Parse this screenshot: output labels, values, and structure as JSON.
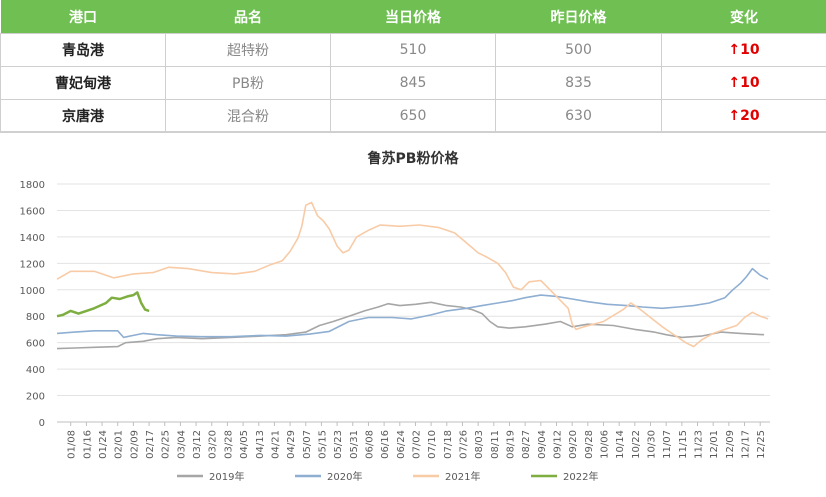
{
  "table": {
    "headers": [
      "港口",
      "品名",
      "当日价格",
      "昨日价格",
      "变化"
    ],
    "rows": [
      {
        "port": "青岛港",
        "product": "超特粉",
        "today": "510",
        "yesterday": "500",
        "change": "↑10"
      },
      {
        "port": "曹妃甸港",
        "product": "PB粉",
        "today": "845",
        "yesterday": "835",
        "change": "↑10"
      },
      {
        "port": "京唐港",
        "product": "混合粉",
        "today": "650",
        "yesterday": "630",
        "change": "↑20"
      }
    ]
  },
  "chart_data": {
    "type": "line",
    "title": "鲁苏PB粉价格",
    "ylim": [
      0,
      1800
    ],
    "yticks": [
      0,
      200,
      400,
      600,
      800,
      1000,
      1200,
      1400,
      1600,
      1800
    ],
    "grid": true,
    "legend_position": "bottom",
    "xtick_labels": [
      "01/08",
      "01/16",
      "01/24",
      "02/01",
      "02/09",
      "02/17",
      "02/25",
      "03/04",
      "03/12",
      "03/20",
      "03/28",
      "04/05",
      "04/13",
      "04/21",
      "04/29",
      "05/07",
      "05/15",
      "05/23",
      "05/31",
      "06/08",
      "06/16",
      "06/24",
      "07/02",
      "07/10",
      "07/18",
      "07/26",
      "08/03",
      "08/11",
      "08/19",
      "08/27",
      "09/04",
      "09/12",
      "09/20",
      "09/28",
      "10/06",
      "10/14",
      "10/22",
      "10/30",
      "11/07",
      "11/15",
      "11/23",
      "12/01",
      "12/09",
      "12/17",
      "12/25"
    ],
    "x_unit": "day_of_year",
    "series": [
      {
        "name": "2019年",
        "color": "#a6a6a6",
        "points": [
          [
            1,
            555
          ],
          [
            10,
            560
          ],
          [
            20,
            565
          ],
          [
            32,
            570
          ],
          [
            36,
            600
          ],
          [
            45,
            610
          ],
          [
            52,
            630
          ],
          [
            62,
            640
          ],
          [
            75,
            630
          ],
          [
            90,
            640
          ],
          [
            105,
            650
          ],
          [
            118,
            660
          ],
          [
            128,
            680
          ],
          [
            135,
            730
          ],
          [
            142,
            760
          ],
          [
            150,
            800
          ],
          [
            158,
            840
          ],
          [
            165,
            870
          ],
          [
            170,
            895
          ],
          [
            176,
            880
          ],
          [
            184,
            890
          ],
          [
            192,
            905
          ],
          [
            200,
            880
          ],
          [
            207,
            870
          ],
          [
            213,
            850
          ],
          [
            218,
            820
          ],
          [
            222,
            760
          ],
          [
            226,
            720
          ],
          [
            232,
            710
          ],
          [
            240,
            720
          ],
          [
            250,
            740
          ],
          [
            258,
            760
          ],
          [
            264,
            720
          ],
          [
            272,
            740
          ],
          [
            285,
            730
          ],
          [
            296,
            700
          ],
          [
            306,
            680
          ],
          [
            312,
            660
          ],
          [
            320,
            640
          ],
          [
            330,
            650
          ],
          [
            340,
            680
          ],
          [
            350,
            670
          ],
          [
            362,
            660
          ]
        ]
      },
      {
        "name": "2020年",
        "color": "#8eaed2",
        "points": [
          [
            1,
            670
          ],
          [
            10,
            680
          ],
          [
            20,
            690
          ],
          [
            32,
            690
          ],
          [
            35,
            640
          ],
          [
            45,
            670
          ],
          [
            52,
            660
          ],
          [
            62,
            650
          ],
          [
            75,
            645
          ],
          [
            90,
            645
          ],
          [
            105,
            655
          ],
          [
            118,
            650
          ],
          [
            130,
            665
          ],
          [
            140,
            685
          ],
          [
            150,
            760
          ],
          [
            160,
            790
          ],
          [
            172,
            790
          ],
          [
            182,
            780
          ],
          [
            192,
            810
          ],
          [
            200,
            840
          ],
          [
            210,
            860
          ],
          [
            218,
            880
          ],
          [
            226,
            900
          ],
          [
            234,
            920
          ],
          [
            240,
            940
          ],
          [
            248,
            960
          ],
          [
            256,
            950
          ],
          [
            264,
            930
          ],
          [
            272,
            910
          ],
          [
            282,
            890
          ],
          [
            292,
            880
          ],
          [
            300,
            870
          ],
          [
            310,
            860
          ],
          [
            318,
            870
          ],
          [
            326,
            880
          ],
          [
            334,
            900
          ],
          [
            342,
            940
          ],
          [
            346,
            1000
          ],
          [
            350,
            1050
          ],
          [
            353,
            1100
          ],
          [
            356,
            1160
          ],
          [
            360,
            1110
          ],
          [
            364,
            1080
          ]
        ]
      },
      {
        "name": "2021年",
        "color": "#f8cba6",
        "points": [
          [
            1,
            1080
          ],
          [
            8,
            1140
          ],
          [
            20,
            1140
          ],
          [
            30,
            1090
          ],
          [
            40,
            1120
          ],
          [
            50,
            1130
          ],
          [
            58,
            1170
          ],
          [
            68,
            1160
          ],
          [
            80,
            1130
          ],
          [
            92,
            1120
          ],
          [
            102,
            1140
          ],
          [
            110,
            1190
          ],
          [
            116,
            1220
          ],
          [
            120,
            1290
          ],
          [
            124,
            1390
          ],
          [
            126,
            1480
          ],
          [
            128,
            1640
          ],
          [
            131,
            1660
          ],
          [
            134,
            1560
          ],
          [
            137,
            1520
          ],
          [
            140,
            1460
          ],
          [
            144,
            1330
          ],
          [
            147,
            1280
          ],
          [
            150,
            1300
          ],
          [
            154,
            1400
          ],
          [
            160,
            1450
          ],
          [
            166,
            1490
          ],
          [
            176,
            1480
          ],
          [
            186,
            1490
          ],
          [
            196,
            1470
          ],
          [
            204,
            1430
          ],
          [
            208,
            1380
          ],
          [
            212,
            1330
          ],
          [
            216,
            1280
          ],
          [
            220,
            1250
          ],
          [
            226,
            1200
          ],
          [
            230,
            1130
          ],
          [
            234,
            1020
          ],
          [
            238,
            1000
          ],
          [
            242,
            1060
          ],
          [
            248,
            1070
          ],
          [
            254,
            980
          ],
          [
            258,
            920
          ],
          [
            262,
            860
          ],
          [
            264,
            740
          ],
          [
            266,
            700
          ],
          [
            270,
            720
          ],
          [
            280,
            760
          ],
          [
            290,
            850
          ],
          [
            294,
            900
          ],
          [
            298,
            860
          ],
          [
            304,
            790
          ],
          [
            310,
            720
          ],
          [
            314,
            680
          ],
          [
            318,
            640
          ],
          [
            322,
            600
          ],
          [
            326,
            570
          ],
          [
            330,
            620
          ],
          [
            336,
            670
          ],
          [
            342,
            700
          ],
          [
            348,
            730
          ],
          [
            352,
            790
          ],
          [
            356,
            830
          ],
          [
            360,
            800
          ],
          [
            364,
            780
          ]
        ]
      },
      {
        "name": "2022年",
        "color": "#7dae3f",
        "points": [
          [
            1,
            800
          ],
          [
            4,
            810
          ],
          [
            8,
            840
          ],
          [
            12,
            820
          ],
          [
            16,
            840
          ],
          [
            20,
            860
          ],
          [
            23,
            880
          ],
          [
            26,
            900
          ],
          [
            29,
            940
          ],
          [
            33,
            930
          ],
          [
            37,
            950
          ],
          [
            40,
            960
          ],
          [
            42,
            980
          ],
          [
            44,
            900
          ],
          [
            46,
            850
          ],
          [
            48,
            840
          ]
        ]
      }
    ]
  }
}
